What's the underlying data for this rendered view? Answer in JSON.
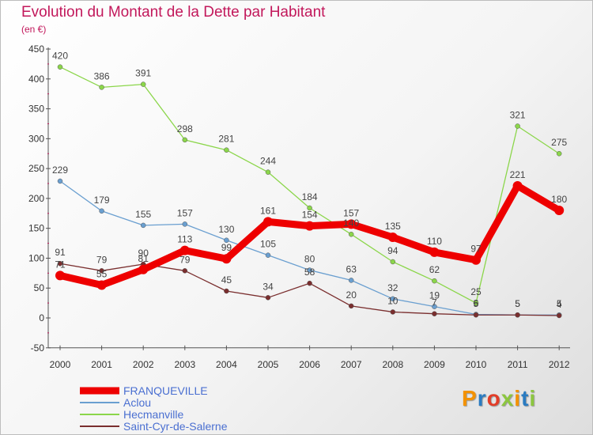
{
  "title": "Evolution du Montant de la Dette par Habitant",
  "subtitle": "(en €)",
  "logo_text": "Proxiti",
  "colors": {
    "title": "#c2185b",
    "franqueville": "#ee0000",
    "aclou": "#6a9fd0",
    "hecmanville": "#8bd64a",
    "saint_cyr": "#7a2e2e"
  },
  "chart_data": {
    "type": "line",
    "x": [
      "2000",
      "2001",
      "2002",
      "2003",
      "2004",
      "2005",
      "2006",
      "2007",
      "2008",
      "2009",
      "2010",
      "2011",
      "2012"
    ],
    "ylim": [
      -50,
      450
    ],
    "yticks": [
      -50,
      0,
      50,
      100,
      150,
      200,
      250,
      300,
      350,
      400,
      450
    ],
    "grid": false,
    "legend_placement": "bottom-left",
    "series": [
      {
        "name": "FRANQUEVILLE",
        "color": "#ee0000",
        "values": [
          71,
          55,
          81,
          113,
          99,
          161,
          154,
          157,
          135,
          110,
          97,
          221,
          180
        ]
      },
      {
        "name": "Aclou",
        "color": "#6a9fd0",
        "values": [
          229,
          179,
          155,
          157,
          130,
          105,
          80,
          63,
          32,
          19,
          6,
          5,
          5
        ]
      },
      {
        "name": "Hecmanville",
        "color": "#8bd64a",
        "values": [
          420,
          386,
          391,
          298,
          281,
          244,
          184,
          140,
          94,
          62,
          25,
          321,
          275
        ]
      },
      {
        "name": "Saint-Cyr-de-Salerne",
        "color": "#7a2e2e",
        "values": [
          91,
          79,
          90,
          79,
          45,
          34,
          58,
          20,
          10,
          7,
          5,
          5,
          4
        ]
      }
    ]
  }
}
